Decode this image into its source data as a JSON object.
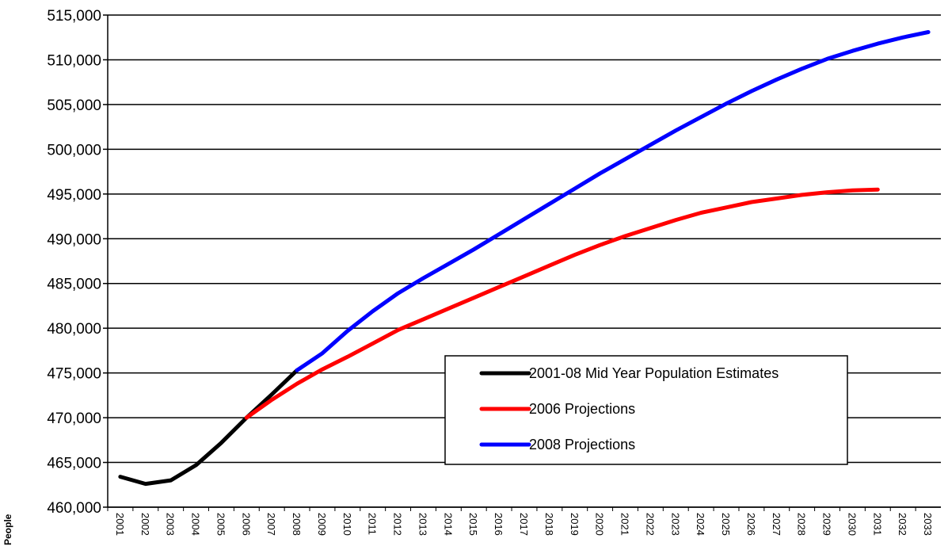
{
  "chart_data": {
    "type": "line",
    "title": "",
    "xlabel": "",
    "ylabel": "People",
    "ylim": [
      460000,
      515000
    ],
    "ytick_step": 5000,
    "grid": "horizontal",
    "legend_placement": "inside-lower-right",
    "x": [
      "2001",
      "2002",
      "2003",
      "2004",
      "2005",
      "2006",
      "2007",
      "2008",
      "2009",
      "2010",
      "2011",
      "2012",
      "2013",
      "2014",
      "2015",
      "2016",
      "2017",
      "2018",
      "2019",
      "2020",
      "2021",
      "2022",
      "2023",
      "2024",
      "2025",
      "2026",
      "2027",
      "2028",
      "2029",
      "2030",
      "2031",
      "2032",
      "2033"
    ],
    "ytick_labels": [
      "460,000",
      "465,000",
      "470,000",
      "475,000",
      "480,000",
      "485,000",
      "490,000",
      "495,000",
      "500,000",
      "505,000",
      "510,000",
      "515,000"
    ],
    "series": [
      {
        "name": "2001-08 Mid Year Population Estimates",
        "color": "#000000",
        "x": [
          "2001",
          "2002",
          "2003",
          "2004",
          "2005",
          "2006",
          "2007",
          "2008"
        ],
        "values": [
          463400,
          462600,
          463000,
          464700,
          467200,
          470000,
          472600,
          475300
        ]
      },
      {
        "name": "2006 Projections",
        "color": "#ff0000",
        "x": [
          "2006",
          "2007",
          "2008",
          "2009",
          "2010",
          "2011",
          "2012",
          "2013",
          "2014",
          "2015",
          "2016",
          "2017",
          "2018",
          "2019",
          "2020",
          "2021",
          "2022",
          "2023",
          "2024",
          "2025",
          "2026",
          "2027",
          "2028",
          "2029",
          "2030",
          "2031"
        ],
        "values": [
          470000,
          472000,
          473800,
          475400,
          476800,
          478300,
          479800,
          481000,
          482200,
          483400,
          484600,
          485800,
          487000,
          488200,
          489300,
          490300,
          491200,
          492100,
          492900,
          493500,
          494100,
          494500,
          494900,
          495200,
          495400,
          495500
        ]
      },
      {
        "name": "2008 Projections",
        "color": "#0000ff",
        "x": [
          "2008",
          "2009",
          "2010",
          "2011",
          "2012",
          "2013",
          "2014",
          "2015",
          "2016",
          "2017",
          "2018",
          "2019",
          "2020",
          "2021",
          "2022",
          "2023",
          "2024",
          "2025",
          "2026",
          "2027",
          "2028",
          "2029",
          "2030",
          "2031",
          "2032",
          "2033"
        ],
        "values": [
          475300,
          477200,
          479700,
          481900,
          483900,
          485600,
          487200,
          488800,
          490500,
          492200,
          493900,
          495600,
          497300,
          498900,
          500500,
          502100,
          503600,
          505100,
          506500,
          507800,
          509000,
          510100,
          511000,
          511800,
          512500,
          513100
        ]
      }
    ]
  }
}
